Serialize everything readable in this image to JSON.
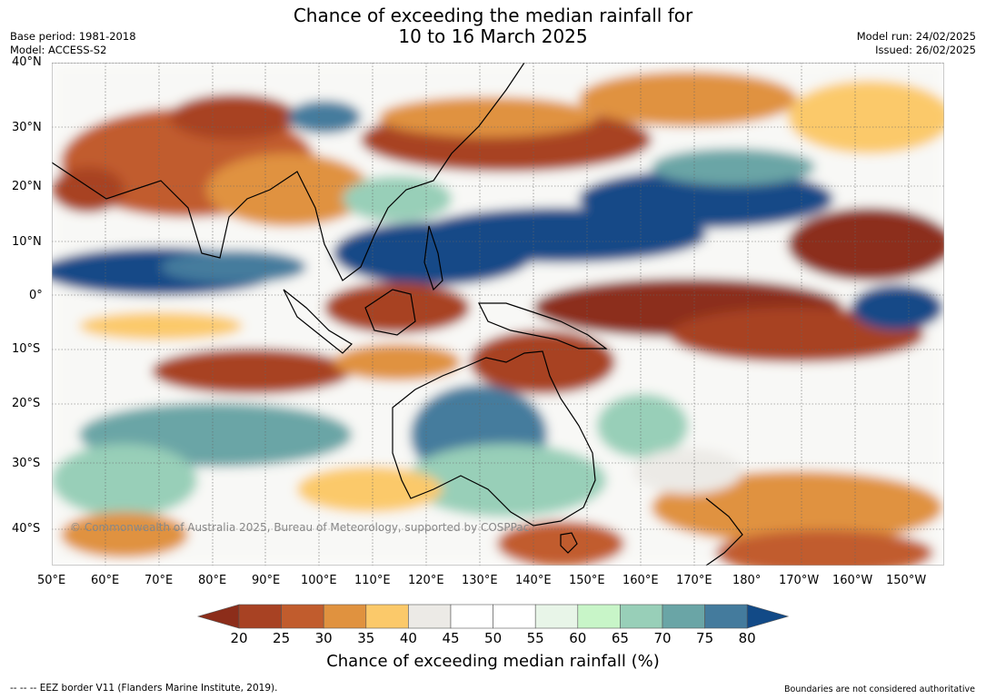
{
  "header": {
    "title_line1": "Chance of exceeding the median rainfall for",
    "title_line2": "10 to 16 March 2025",
    "base_period": "Base period: 1981-2018",
    "model": "Model: ACCESS-S2",
    "model_run": "Model run: 24/02/2025",
    "issued": "Issued: 26/02/2025"
  },
  "map": {
    "lat_labels": [
      "40°N",
      "30°N",
      "20°N",
      "10°N",
      "0°",
      "10°S",
      "20°S",
      "30°S",
      "40°S"
    ],
    "lon_labels": [
      "50°E",
      "60°E",
      "70°E",
      "80°E",
      "90°E",
      "100°E",
      "110°E",
      "120°E",
      "130°E",
      "140°E",
      "150°E",
      "160°E",
      "170°E",
      "180°",
      "170°W",
      "160°W",
      "150°W"
    ],
    "copyright": "© Commonwealth of Australia 2025, Bureau of Meteorology, supported by COSPPac"
  },
  "colorbar": {
    "title": "Chance of exceeding median rainfall (%)",
    "ticks": [
      "20",
      "25",
      "30",
      "35",
      "40",
      "45",
      "50",
      "55",
      "60",
      "65",
      "70",
      "75",
      "80"
    ],
    "colors": [
      "#8c2d1a",
      "#a84223",
      "#c15c2d",
      "#e0923f",
      "#fbc96a",
      "#eceae6",
      "#ffffff",
      "#ffffff",
      "#e8f5e8",
      "#c8f5c8",
      "#98cfb8",
      "#6aa5a6",
      "#447b9d",
      "#124a87"
    ]
  },
  "footer": {
    "eez_note": "--  --  -- EEZ border V11 (Flanders Marine Institute, 2019).",
    "disclaimer": "Boundaries are not considered authoritative"
  }
}
